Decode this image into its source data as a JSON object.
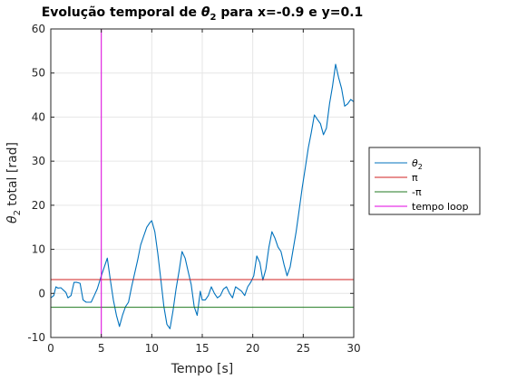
{
  "chart_data": {
    "type": "line",
    "title": "Evolução temporal de θ₂ para x=-0.9 e y=0.1",
    "title_parts": {
      "before": "Evolução temporal de ",
      "symbol": "θ",
      "sub": "2",
      "after": " para x=-0.9 e y=0.1"
    },
    "xlabel": "Tempo [s]",
    "ylabel": "θ₂ total [rad]",
    "ylabel_parts": {
      "symbol": "θ",
      "sub": "2",
      "rest": " total [rad]"
    },
    "xlim": [
      0,
      30
    ],
    "ylim": [
      -10,
      60
    ],
    "xticks": [
      "0",
      "5",
      "10",
      "15",
      "20",
      "25",
      "30"
    ],
    "yticks": [
      "-10",
      "0",
      "10",
      "20",
      "30",
      "40",
      "50",
      "60"
    ],
    "grid": true,
    "legend_position": "outside-right",
    "series": [
      {
        "name": "θ2",
        "name_symbol": "θ",
        "name_sub": "2",
        "color": "#0072BD",
        "x": [
          0,
          0.3,
          0.5,
          0.7,
          1.0,
          1.5,
          1.7,
          2.0,
          2.3,
          2.6,
          2.9,
          3.2,
          3.5,
          4.0,
          4.3,
          4.6,
          5.0,
          5.3,
          5.6,
          5.9,
          6.2,
          6.5,
          6.8,
          7.1,
          7.4,
          7.7,
          8.0,
          8.3,
          8.6,
          8.9,
          9.2,
          9.5,
          9.8,
          10.0,
          10.3,
          10.6,
          10.9,
          11.2,
          11.5,
          11.8,
          12.1,
          12.4,
          12.7,
          13.0,
          13.3,
          13.6,
          13.9,
          14.2,
          14.5,
          14.8,
          15.0,
          15.3,
          15.6,
          15.9,
          16.2,
          16.5,
          16.8,
          17.1,
          17.4,
          17.7,
          18.0,
          18.3,
          18.6,
          18.9,
          19.2,
          19.5,
          19.8,
          20.1,
          20.4,
          20.7,
          21.0,
          21.3,
          21.6,
          21.9,
          22.2,
          22.5,
          22.8,
          23.1,
          23.4,
          23.7,
          24.0,
          24.3,
          24.6,
          24.9,
          25.2,
          25.5,
          25.8,
          26.1,
          26.4,
          26.7,
          27.0,
          27.3,
          27.6,
          27.9,
          28.2,
          28.5,
          28.8,
          29.1,
          29.4,
          29.7,
          30.0
        ],
        "y": [
          -1,
          -0.5,
          1.5,
          1.2,
          1.3,
          0.2,
          -1.0,
          -0.5,
          2.5,
          2.5,
          2.3,
          -1.5,
          -2.0,
          -2.0,
          -0.5,
          1.0,
          4.0,
          6.0,
          8.0,
          3.0,
          -1.5,
          -5.0,
          -7.5,
          -5.0,
          -3.0,
          -2.0,
          1.5,
          4.5,
          7.5,
          11.0,
          13.0,
          15.0,
          16.0,
          16.5,
          14.0,
          9.0,
          3.0,
          -3.0,
          -7.0,
          -8.0,
          -4.0,
          1.0,
          5.0,
          9.5,
          8.0,
          5.0,
          2.0,
          -3.0,
          -5.0,
          0.5,
          -1.5,
          -1.5,
          -0.5,
          1.5,
          0,
          -1.0,
          -0.5,
          1.0,
          1.5,
          0,
          -1.0,
          1.5,
          1.0,
          0.5,
          -0.5,
          1.5,
          2.5,
          4.0,
          8.5,
          7.0,
          3.0,
          5.5,
          10.5,
          14.0,
          12.5,
          10.5,
          9.5,
          6.5,
          4.0,
          6.0,
          10.0,
          14.0,
          19.0,
          24.0,
          28.5,
          33.0,
          36.5,
          40.5,
          39.5,
          38.5,
          36.0,
          37.5,
          43.0,
          47.0,
          52.0,
          49.0,
          46.5,
          42.5,
          43.0,
          44.0,
          43.5
        ]
      },
      {
        "name": "π",
        "color": "#D22020",
        "x": [
          0,
          30
        ],
        "y": [
          3.1416,
          3.1416
        ]
      },
      {
        "name": "-π",
        "color": "#207A20",
        "x": [
          0,
          30
        ],
        "y": [
          -3.1416,
          -3.1416
        ]
      },
      {
        "name": "tempo loop",
        "color": "#E000E0",
        "x": [
          5,
          5
        ],
        "y": [
          -10,
          60
        ],
        "vertical": true
      }
    ]
  }
}
